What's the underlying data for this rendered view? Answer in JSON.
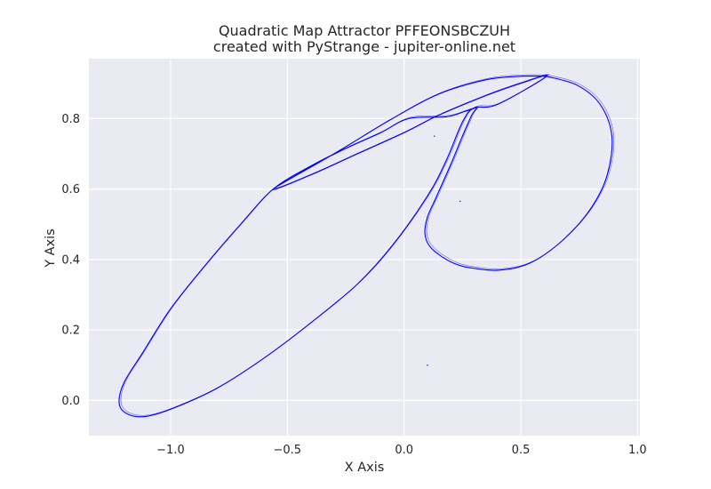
{
  "chart_data": {
    "type": "scatter",
    "title": [
      "Quadratic Map Attractor PFFEONSBCZUH",
      "created with PyStrange - jupiter-online.net"
    ],
    "xlabel": "X Axis",
    "ylabel": "Y Axis",
    "xlim": [
      -1.35,
      1.01
    ],
    "ylim": [
      -0.1,
      0.97
    ],
    "xticks": [
      -1.0,
      -0.5,
      0.0,
      0.5,
      1.0
    ],
    "xtick_labels": [
      "−1.0",
      "−0.5",
      "0.0",
      "0.5",
      "1.0"
    ],
    "yticks": [
      0.0,
      0.2,
      0.4,
      0.6,
      0.8
    ],
    "ytick_labels": [
      "0.0",
      "0.2",
      "0.4",
      "0.6",
      "0.8"
    ],
    "grid": true,
    "background": "#eaeaf2",
    "grid_color": "#ffffff",
    "series": [
      {
        "color": "#0000ff",
        "points": [
          [
            0.61,
            0.92
          ],
          [
            0.74,
            0.895
          ],
          [
            0.84,
            0.84
          ],
          [
            0.89,
            0.75
          ],
          [
            0.87,
            0.64
          ],
          [
            0.8,
            0.545
          ],
          [
            0.68,
            0.455
          ],
          [
            0.54,
            0.39
          ],
          [
            0.41,
            0.37
          ],
          [
            0.3,
            0.375
          ],
          [
            0.21,
            0.39
          ],
          [
            0.12,
            0.43
          ],
          [
            0.09,
            0.47
          ],
          [
            0.1,
            0.52
          ],
          [
            0.14,
            0.58
          ],
          [
            0.2,
            0.67
          ],
          [
            0.25,
            0.75
          ],
          [
            0.29,
            0.81
          ],
          [
            0.31,
            0.83
          ],
          [
            0.26,
            0.82
          ],
          [
            0.18,
            0.805
          ],
          [
            0.02,
            0.8
          ],
          [
            -0.1,
            0.76
          ],
          [
            -0.25,
            0.715
          ],
          [
            -0.4,
            0.665
          ],
          [
            -0.56,
            0.6
          ],
          [
            -0.7,
            0.5
          ],
          [
            -0.85,
            0.385
          ],
          [
            -1.0,
            0.26
          ],
          [
            -1.12,
            0.135
          ],
          [
            -1.2,
            0.05
          ],
          [
            -1.22,
            -0.01
          ],
          [
            -1.18,
            -0.04
          ],
          [
            -1.1,
            -0.045
          ],
          [
            -0.98,
            -0.02
          ],
          [
            -0.8,
            0.035
          ],
          [
            -0.6,
            0.12
          ],
          [
            -0.4,
            0.22
          ],
          [
            -0.2,
            0.33
          ],
          [
            -0.05,
            0.44
          ],
          [
            0.1,
            0.58
          ],
          [
            0.18,
            0.68
          ],
          [
            0.25,
            0.79
          ],
          [
            0.3,
            0.83
          ],
          [
            0.4,
            0.84
          ],
          [
            0.61,
            0.92
          ],
          [
            0.5,
            0.9
          ],
          [
            0.35,
            0.865
          ],
          [
            0.15,
            0.81
          ],
          [
            0.0,
            0.76
          ],
          [
            -0.2,
            0.7
          ],
          [
            -0.4,
            0.64
          ],
          [
            -0.56,
            0.6
          ],
          [
            -0.3,
            0.7
          ],
          [
            -0.05,
            0.8
          ],
          [
            0.15,
            0.87
          ],
          [
            0.35,
            0.91
          ],
          [
            0.5,
            0.92
          ],
          [
            0.61,
            0.92
          ]
        ]
      }
    ],
    "stray_points": [
      [
        0.13,
        0.75
      ],
      [
        0.24,
        0.565
      ],
      [
        0.1,
        0.1
      ]
    ]
  }
}
